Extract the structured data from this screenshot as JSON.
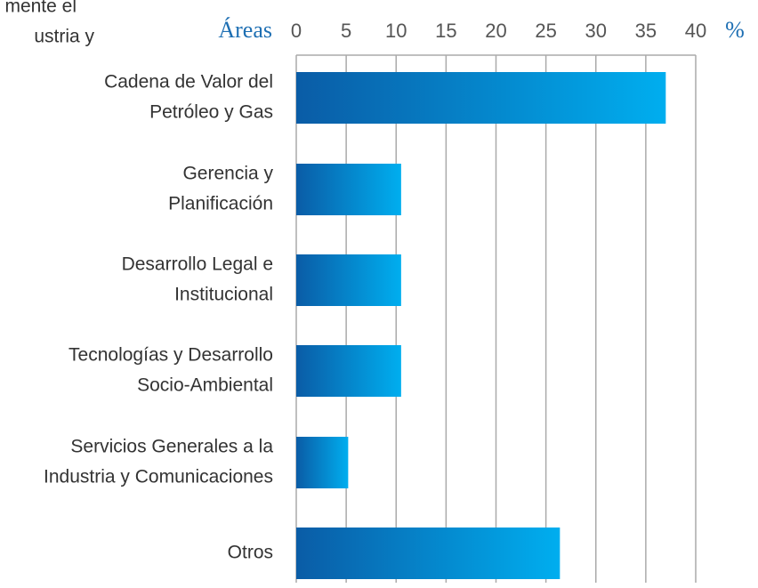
{
  "background_text": [
    "mente el",
    "ustria y"
  ],
  "chart_data": {
    "type": "bar",
    "orientation": "horizontal",
    "y_axis_label": "Áreas",
    "x_axis_label": "%",
    "categories": [
      [
        "Cadena de Valor del",
        "Petróleo y Gas"
      ],
      [
        "Gerencia y",
        "Planificación"
      ],
      [
        "Desarrollo Legal e",
        "Institucional"
      ],
      [
        "Tecnologías y Desarrollo",
        "Socio-Ambiental"
      ],
      [
        "Servicios Generales a la",
        "Industria y Comunicaciones"
      ],
      [
        "Otros"
      ]
    ],
    "values": [
      37,
      10.5,
      10.5,
      10.5,
      5.2,
      26.4
    ],
    "gradient": [
      "#0a5ca6",
      "#00aeef"
    ],
    "xlim": [
      0,
      40
    ],
    "xticks": [
      0,
      5,
      10,
      15,
      20,
      25,
      30,
      35,
      40
    ],
    "grid": true
  }
}
